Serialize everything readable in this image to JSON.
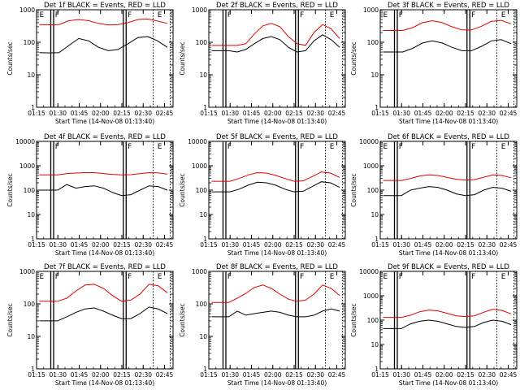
{
  "figure": {
    "colors": {
      "events": "#000000",
      "lld": "#e00000",
      "axis": "#000000",
      "background": "#ffffff"
    }
  },
  "chart_data": [
    {
      "type": "line",
      "title": "Det 1f BLACK = Events, RED = LLD",
      "xlabel": "Start Time (14-Nov-08 01:13:40)",
      "ylabel": "Counts/sec",
      "yscale": "log",
      "ylim": [
        1,
        1000
      ],
      "ytick_labels": [
        "1",
        "10",
        "100",
        "1000"
      ],
      "xtick_labels": [
        "01:15",
        "01:30",
        "01:45",
        "02:00",
        "02:15",
        "02:30",
        "02:45"
      ],
      "markers": [
        "E",
        "F",
        "F",
        "E"
      ],
      "series": [
        {
          "name": "Events",
          "values": [
            48,
            47,
            48,
            80,
            130,
            110,
            70,
            55,
            60,
            90,
            140,
            150,
            110,
            70
          ]
        },
        {
          "name": "LLD",
          "values": [
            350,
            345,
            350,
            460,
            500,
            460,
            380,
            340,
            350,
            400,
            500,
            520,
            450,
            380
          ]
        }
      ]
    },
    {
      "type": "line",
      "title": "Det 2f BLACK = Events, RED = LLD",
      "xlabel": "Start Time (14-Nov-08 01:13:40)",
      "ylabel": "Counts/sec",
      "yscale": "log",
      "ylim": [
        1,
        1000
      ],
      "ytick_labels": [
        "1",
        "10",
        "100",
        "1000"
      ],
      "xtick_labels": [
        "01:15",
        "01:30",
        "01:45",
        "02:00",
        "02:15",
        "02:30",
        "02:45"
      ],
      "markers": [
        "F",
        "F",
        "E"
      ],
      "series": [
        {
          "name": "Events",
          "values": [
            55,
            55,
            55,
            50,
            60,
            90,
            130,
            150,
            120,
            70,
            50,
            55,
            110,
            170,
            120,
            70
          ]
        },
        {
          "name": "LLD",
          "values": [
            80,
            80,
            80,
            80,
            90,
            180,
            320,
            380,
            300,
            150,
            90,
            80,
            200,
            350,
            260,
            130
          ]
        }
      ]
    },
    {
      "type": "line",
      "title": "Det 3f BLACK = Events, RED = LLD",
      "xlabel": "Start Time (14-Nov-08 01:13:40)",
      "ylabel": "Counts/sec",
      "yscale": "log",
      "ylim": [
        1,
        1000
      ],
      "ytick_labels": [
        "1",
        "10",
        "100",
        "1000"
      ],
      "xtick_labels": [
        "01:15",
        "01:30",
        "01:45",
        "02:00",
        "02:15",
        "02:30",
        "02:45"
      ],
      "markers": [
        "E",
        "F",
        "F",
        "E"
      ],
      "series": [
        {
          "name": "Events",
          "values": [
            50,
            50,
            50,
            65,
            95,
            110,
            95,
            70,
            55,
            55,
            75,
            110,
            120,
            90
          ]
        },
        {
          "name": "LLD",
          "values": [
            230,
            230,
            230,
            280,
            400,
            460,
            400,
            300,
            240,
            240,
            310,
            440,
            470,
            370
          ]
        }
      ]
    },
    {
      "type": "line",
      "title": "Det 4f BLACK = Events, RED = LLD",
      "xlabel": "Start Time (14-Nov-08 01:13:40)",
      "ylabel": "Counts/sec",
      "yscale": "log",
      "ylim": [
        1,
        10000
      ],
      "ytick_labels": [
        "1",
        "10",
        "100",
        "1000",
        "10000"
      ],
      "xtick_labels": [
        "01:15",
        "01:30",
        "01:45",
        "02:00",
        "02:15",
        "02:30",
        "02:45"
      ],
      "markers": [
        "F",
        "F",
        "E"
      ],
      "series": [
        {
          "name": "Events",
          "values": [
            100,
            100,
            100,
            170,
            120,
            140,
            150,
            120,
            80,
            60,
            65,
            100,
            150,
            140,
            100
          ]
        },
        {
          "name": "LLD",
          "values": [
            420,
            420,
            420,
            480,
            500,
            520,
            520,
            480,
            440,
            420,
            430,
            470,
            520,
            510,
            450
          ]
        }
      ]
    },
    {
      "type": "line",
      "title": "Det 5f BLACK = Events, RED = LLD",
      "xlabel": "Start Time (14-Nov-08 01:13:40)",
      "ylabel": "Counts/sec",
      "yscale": "log",
      "ylim": [
        1,
        10000
      ],
      "ytick_labels": [
        "1",
        "10",
        "100",
        "1000",
        "10000"
      ],
      "xtick_labels": [
        "01:15",
        "01:30",
        "01:45",
        "02:00",
        "02:15",
        "02:30",
        "02:45"
      ],
      "markers": [
        "F",
        "F",
        "E"
      ],
      "series": [
        {
          "name": "Events",
          "values": [
            85,
            85,
            85,
            110,
            160,
            210,
            200,
            160,
            110,
            85,
            90,
            140,
            220,
            200,
            130
          ]
        },
        {
          "name": "LLD",
          "values": [
            230,
            230,
            230,
            300,
            420,
            520,
            500,
            400,
            300,
            230,
            240,
            360,
            560,
            500,
            330
          ]
        }
      ]
    },
    {
      "type": "line",
      "title": "Det 6f BLACK = Events, RED = LLD",
      "xlabel": "Start Time (14-Nov-08 01:13:40)",
      "ylabel": "Counts/sec",
      "yscale": "log",
      "ylim": [
        1,
        10000
      ],
      "ytick_labels": [
        "1",
        "10",
        "100",
        "1000",
        "10000"
      ],
      "xtick_labels": [
        "01:15",
        "01:30",
        "01:45",
        "02:00",
        "02:15",
        "02:30",
        "02:45"
      ],
      "markers": [
        "E",
        "F",
        "F",
        "E"
      ],
      "series": [
        {
          "name": "Events",
          "values": [
            60,
            60,
            60,
            100,
            120,
            140,
            130,
            100,
            70,
            60,
            65,
            100,
            130,
            120,
            90
          ]
        },
        {
          "name": "LLD",
          "values": [
            250,
            250,
            250,
            300,
            380,
            420,
            400,
            330,
            280,
            260,
            270,
            340,
            420,
            400,
            320
          ]
        }
      ]
    },
    {
      "type": "line",
      "title": "Det 7f BLACK = Events, RED = LLD",
      "xlabel": "Start Time (14-Nov-08 01:13:40)",
      "ylabel": "Counts/sec",
      "yscale": "log",
      "ylim": [
        1,
        1000
      ],
      "ytick_labels": [
        "1",
        "10",
        "100",
        "1000"
      ],
      "xtick_labels": [
        "01:15",
        "01:30",
        "01:45",
        "02:00",
        "02:15",
        "02:30",
        "02:45"
      ],
      "markers": [
        "E",
        "F",
        "F",
        "E"
      ],
      "series": [
        {
          "name": "Events",
          "values": [
            30,
            30,
            30,
            40,
            55,
            70,
            75,
            60,
            45,
            35,
            35,
            50,
            80,
            70,
            50
          ]
        },
        {
          "name": "LLD",
          "values": [
            120,
            120,
            120,
            150,
            250,
            380,
            400,
            300,
            180,
            120,
            130,
            200,
            400,
            360,
            220
          ]
        }
      ]
    },
    {
      "type": "line",
      "title": "Det 8f BLACK = Events, RED = LLD",
      "xlabel": "Start Time (14-Nov-08 01:13:40)",
      "ylabel": "Counts/sec",
      "yscale": "log",
      "ylim": [
        1,
        1000
      ],
      "ytick_labels": [
        "1",
        "10",
        "100",
        "1000"
      ],
      "xtick_labels": [
        "01:15",
        "01:30",
        "01:45",
        "02:00",
        "02:15",
        "02:30",
        "02:45"
      ],
      "markers": [
        "F",
        "F",
        "E"
      ],
      "series": [
        {
          "name": "Events",
          "values": [
            40,
            40,
            40,
            60,
            45,
            50,
            55,
            60,
            55,
            45,
            40,
            40,
            45,
            60,
            70,
            60
          ]
        },
        {
          "name": "LLD",
          "values": [
            110,
            110,
            110,
            150,
            210,
            320,
            380,
            300,
            200,
            140,
            120,
            130,
            200,
            380,
            300,
            180
          ]
        }
      ]
    },
    {
      "type": "line",
      "title": "Det 9f BLACK = Events, RED = LLD",
      "xlabel": "Start Time (14-Nov-08 01:13:40)",
      "ylabel": "Counts/sec",
      "yscale": "log",
      "ylim": [
        1,
        10000
      ],
      "ytick_labels": [
        "1",
        "10",
        "100",
        "1000",
        "10000"
      ],
      "xtick_labels": [
        "01:15",
        "01:30",
        "01:45",
        "02:00",
        "02:15",
        "02:30",
        "02:45"
      ],
      "markers": [
        "E",
        "F",
        "F",
        "E"
      ],
      "series": [
        {
          "name": "Events",
          "values": [
            45,
            45,
            45,
            70,
            90,
            100,
            90,
            70,
            55,
            50,
            55,
            80,
            100,
            90,
            65
          ]
        },
        {
          "name": "LLD",
          "values": [
            130,
            130,
            130,
            160,
            220,
            260,
            240,
            190,
            150,
            140,
            150,
            210,
            280,
            250,
            180
          ]
        }
      ]
    }
  ]
}
